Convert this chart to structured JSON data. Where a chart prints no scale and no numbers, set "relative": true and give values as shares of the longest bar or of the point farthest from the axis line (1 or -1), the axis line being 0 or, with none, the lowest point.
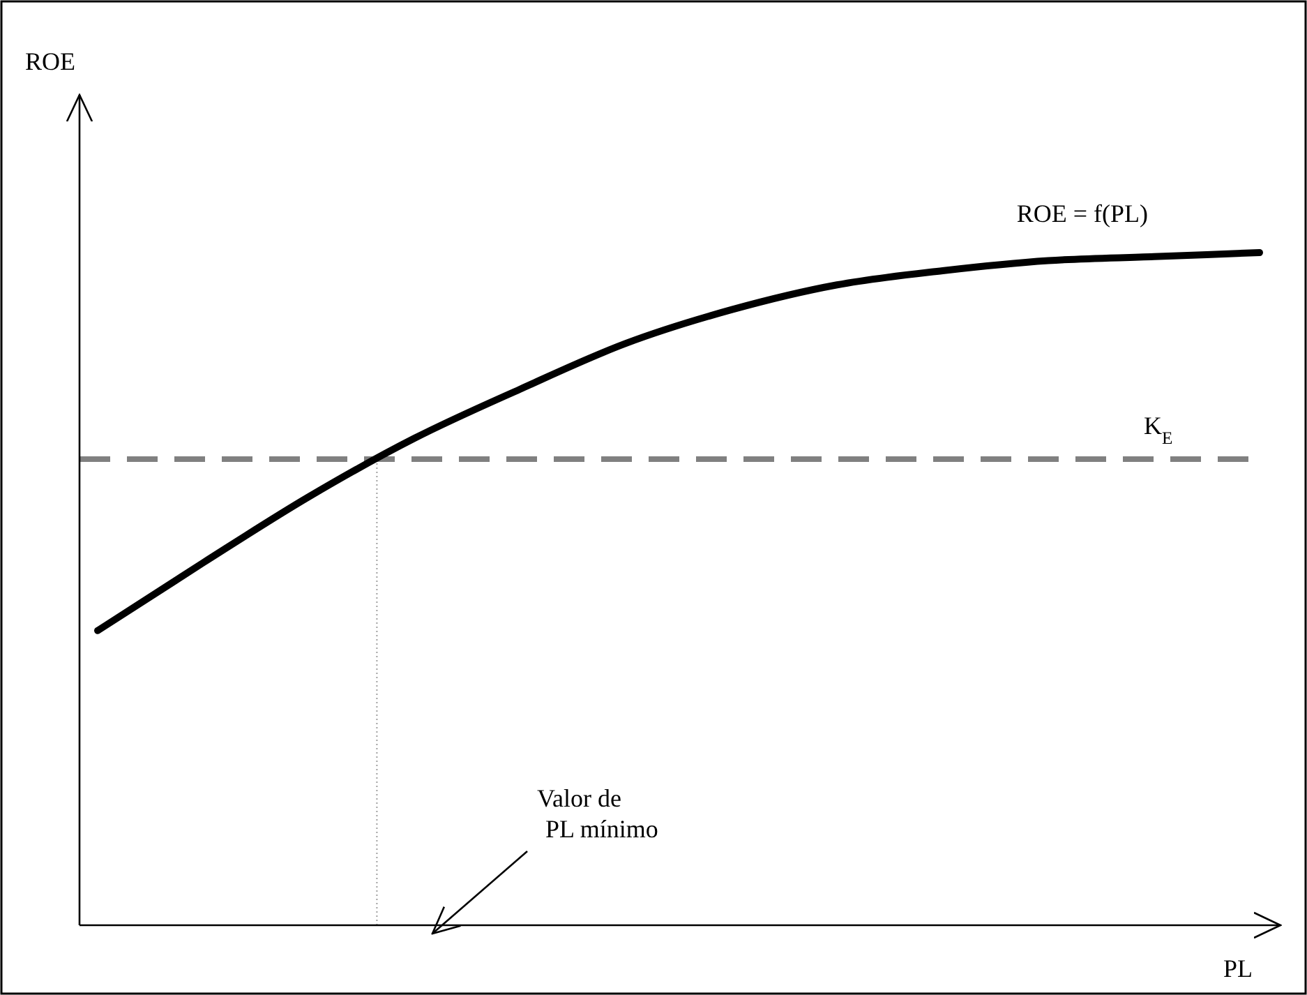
{
  "chart_data": {
    "type": "line",
    "relative": true,
    "xlabel": "PL",
    "categories": [
      null,
      null,
      null,
      null,
      null,
      null,
      null,
      null,
      null,
      null,
      null,
      null
    ],
    "series": [
      {
        "name": "ROE = f(PL)",
        "color": "#000000",
        "values": [
          0.438,
          0.539,
          0.637,
          0.724,
          0.797,
          0.865,
          0.915,
          0.952,
          0.973,
          0.988,
          0.994,
          1
        ]
      }
    ],
    "ref_lines": [
      {
        "axis": "y",
        "value": 0.693,
        "label": "K$_{E}$",
        "color": "#808080",
        "line_style": "dashed"
      }
    ],
    "annotations": [
      "ROE",
      "Valor de\nPL mínimo"
    ],
    "marker": "none",
    "line_style": "solid"
  }
}
